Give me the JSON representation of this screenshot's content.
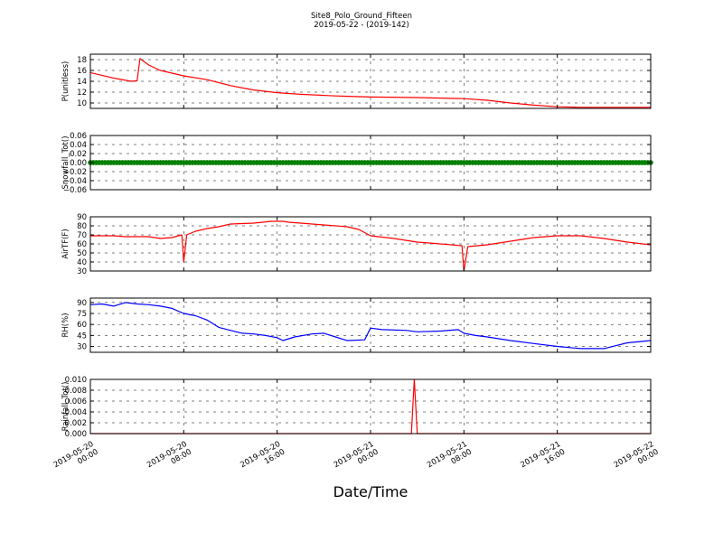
{
  "title": "Site8_Polo_Ground_Fifteen",
  "subtitle": "2019-05-22 - (2019-142)",
  "xlabel": "Date/Time",
  "x_ticks": [
    {
      "line1": "2019-05-20",
      "line2": "00:00"
    },
    {
      "line1": "2019-05-20",
      "line2": "08:00"
    },
    {
      "line1": "2019-05-20",
      "line2": "16:00"
    },
    {
      "line1": "2019-05-21",
      "line2": "00:00"
    },
    {
      "line1": "2019-05-21",
      "line2": "08:00"
    },
    {
      "line1": "2019-05-21",
      "line2": "16:00"
    },
    {
      "line1": "2019-05-22",
      "line2": "00:00"
    }
  ],
  "colors": {
    "red": "#ff0000",
    "green": "#008000",
    "blue": "#0000ff"
  },
  "chart_data": [
    {
      "type": "line",
      "ylabel": "P(unitless)",
      "ylim": [
        9,
        19
      ],
      "yticks": [
        10,
        12,
        14,
        16,
        18
      ],
      "ytick_labels": [
        "10",
        "12",
        "14",
        "16",
        "18"
      ],
      "grid": true,
      "x_range": [
        "2019-05-20 00:00",
        "2019-05-22 00:00"
      ],
      "series": [
        {
          "color": "#ff0000",
          "marker": "none",
          "points": [
            [
              "2019-05-20 00:00",
              15.6
            ],
            [
              "2019-05-20 02:00",
              14.6
            ],
            [
              "2019-05-20 03:30",
              14.0
            ],
            [
              "2019-05-20 04:00",
              14.1
            ],
            [
              "2019-05-20 04:15",
              18.2
            ],
            [
              "2019-05-20 05:00",
              17.0
            ],
            [
              "2019-05-20 06:00",
              16.0
            ],
            [
              "2019-05-20 08:00",
              15.0
            ],
            [
              "2019-05-20 10:00",
              14.3
            ],
            [
              "2019-05-20 12:00",
              13.2
            ],
            [
              "2019-05-20 14:00",
              12.4
            ],
            [
              "2019-05-20 16:00",
              11.9
            ],
            [
              "2019-05-20 18:00",
              11.6
            ],
            [
              "2019-05-20 21:00",
              11.3
            ],
            [
              "2019-05-21 00:00",
              11.1
            ],
            [
              "2019-05-21 04:00",
              11.0
            ],
            [
              "2019-05-21 08:00",
              10.8
            ],
            [
              "2019-05-21 10:00",
              10.5
            ],
            [
              "2019-05-21 12:00",
              10.0
            ],
            [
              "2019-05-21 14:00",
              9.6
            ],
            [
              "2019-05-21 16:00",
              9.3
            ],
            [
              "2019-05-21 18:00",
              9.2
            ],
            [
              "2019-05-21 20:00",
              9.2
            ],
            [
              "2019-05-22 00:00",
              9.2
            ]
          ]
        }
      ]
    },
    {
      "type": "scatter",
      "ylabel": "Snowfall_Tot()",
      "ylim": [
        -0.06,
        0.06
      ],
      "yticks": [
        -0.06,
        -0.04,
        -0.02,
        0.0,
        0.02,
        0.04,
        0.06
      ],
      "ytick_labels": [
        "−0.06",
        "−0.04",
        "−0.02",
        "0.00",
        "0.02",
        "0.04",
        "0.06"
      ],
      "grid": true,
      "x_range": [
        "2019-05-20 00:00",
        "2019-05-22 00:00"
      ],
      "series": [
        {
          "color": "#008000",
          "marker": "circle",
          "constant_value": 0.0,
          "from": "2019-05-20 00:00",
          "to": "2019-05-22 00:00",
          "interval_minutes": 15
        }
      ]
    },
    {
      "type": "line",
      "ylabel": "AirTF(F)",
      "ylim": [
        30,
        90
      ],
      "yticks": [
        30,
        40,
        50,
        60,
        70,
        80,
        90
      ],
      "ytick_labels": [
        "30",
        "40",
        "50",
        "60",
        "70",
        "80",
        "90"
      ],
      "grid": true,
      "x_range": [
        "2019-05-20 00:00",
        "2019-05-22 00:00"
      ],
      "series": [
        {
          "color": "#ff0000",
          "marker": "none",
          "points": [
            [
              "2019-05-20 00:00",
              69
            ],
            [
              "2019-05-20 02:00",
              69
            ],
            [
              "2019-05-20 03:00",
              68
            ],
            [
              "2019-05-20 05:00",
              68
            ],
            [
              "2019-05-20 06:00",
              66
            ],
            [
              "2019-05-20 07:00",
              67
            ],
            [
              "2019-05-20 07:50",
              70
            ],
            [
              "2019-05-20 08:00",
              40
            ],
            [
              "2019-05-20 08:15",
              70
            ],
            [
              "2019-05-20 09:00",
              74
            ],
            [
              "2019-05-20 10:00",
              77
            ],
            [
              "2019-05-20 11:00",
              79
            ],
            [
              "2019-05-20 12:00",
              82
            ],
            [
              "2019-05-20 14:00",
              83
            ],
            [
              "2019-05-20 15:30",
              85
            ],
            [
              "2019-05-20 16:30",
              85
            ],
            [
              "2019-05-20 17:00",
              84
            ],
            [
              "2019-05-20 18:00",
              83
            ],
            [
              "2019-05-20 20:00",
              81
            ],
            [
              "2019-05-20 22:00",
              79
            ],
            [
              "2019-05-20 23:00",
              76
            ],
            [
              "2019-05-21 00:00",
              69
            ],
            [
              "2019-05-21 02:00",
              66
            ],
            [
              "2019-05-21 04:00",
              62
            ],
            [
              "2019-05-21 06:00",
              60
            ],
            [
              "2019-05-21 07:50",
              58
            ],
            [
              "2019-05-21 08:00",
              30
            ],
            [
              "2019-05-21 08:20",
              57
            ],
            [
              "2019-05-21 10:00",
              59
            ],
            [
              "2019-05-21 12:00",
              63
            ],
            [
              "2019-05-21 14:00",
              67
            ],
            [
              "2019-05-21 16:00",
              69
            ],
            [
              "2019-05-21 18:00",
              69
            ],
            [
              "2019-05-21 20:00",
              66
            ],
            [
              "2019-05-21 22:00",
              62
            ],
            [
              "2019-05-22 00:00",
              59
            ]
          ]
        }
      ]
    },
    {
      "type": "line",
      "ylabel": "RH(%)",
      "ylim": [
        22,
        96
      ],
      "yticks": [
        30,
        45,
        60,
        75,
        90
      ],
      "ytick_labels": [
        "30",
        "45",
        "60",
        "75",
        "90"
      ],
      "grid": true,
      "x_range": [
        "2019-05-20 00:00",
        "2019-05-22 00:00"
      ],
      "series": [
        {
          "color": "#0000ff",
          "marker": "none",
          "points": [
            [
              "2019-05-20 00:00",
              87
            ],
            [
              "2019-05-20 01:00",
              88
            ],
            [
              "2019-05-20 02:00",
              85
            ],
            [
              "2019-05-20 03:00",
              90
            ],
            [
              "2019-05-20 04:00",
              88
            ],
            [
              "2019-05-20 05:00",
              87
            ],
            [
              "2019-05-20 06:00",
              85
            ],
            [
              "2019-05-20 07:00",
              82
            ],
            [
              "2019-05-20 08:00",
              75
            ],
            [
              "2019-05-20 09:00",
              72
            ],
            [
              "2019-05-20 10:00",
              66
            ],
            [
              "2019-05-20 11:00",
              56
            ],
            [
              "2019-05-20 12:00",
              52
            ],
            [
              "2019-05-20 13:00",
              48
            ],
            [
              "2019-05-20 14:00",
              47
            ],
            [
              "2019-05-20 15:00",
              45
            ],
            [
              "2019-05-20 16:00",
              42
            ],
            [
              "2019-05-20 16:30",
              38
            ],
            [
              "2019-05-20 17:30",
              43
            ],
            [
              "2019-05-20 19:00",
              47
            ],
            [
              "2019-05-20 20:00",
              48
            ],
            [
              "2019-05-20 21:00",
              43
            ],
            [
              "2019-05-20 22:00",
              38
            ],
            [
              "2019-05-20 23:30",
              39
            ],
            [
              "2019-05-21 00:00",
              55
            ],
            [
              "2019-05-21 01:00",
              53
            ],
            [
              "2019-05-21 03:00",
              52
            ],
            [
              "2019-05-21 04:00",
              50
            ],
            [
              "2019-05-21 06:00",
              51
            ],
            [
              "2019-05-21 07:30",
              53
            ],
            [
              "2019-05-21 08:00",
              48
            ],
            [
              "2019-05-21 09:00",
              45
            ],
            [
              "2019-05-21 10:00",
              43
            ],
            [
              "2019-05-21 12:00",
              38
            ],
            [
              "2019-05-21 14:00",
              34
            ],
            [
              "2019-05-21 16:00",
              30
            ],
            [
              "2019-05-21 18:00",
              27
            ],
            [
              "2019-05-21 20:00",
              27
            ],
            [
              "2019-05-21 22:00",
              35
            ],
            [
              "2019-05-22 00:00",
              38
            ]
          ]
        }
      ]
    },
    {
      "type": "line",
      "ylabel": "Rainfall_Tot()",
      "ylim": [
        0,
        0.01
      ],
      "yticks": [
        0.0,
        0.002,
        0.004,
        0.006,
        0.008,
        0.01
      ],
      "ytick_labels": [
        "0.000",
        "0.002",
        "0.004",
        "0.006",
        "0.008",
        "0.010"
      ],
      "grid": true,
      "x_range": [
        "2019-05-20 00:00",
        "2019-05-22 00:00"
      ],
      "series": [
        {
          "color": "#ff0000",
          "marker": "none",
          "points": [
            [
              "2019-05-20 00:00",
              0
            ],
            [
              "2019-05-21 03:30",
              0
            ],
            [
              "2019-05-21 03:45",
              0.01
            ],
            [
              "2019-05-21 04:00",
              0
            ],
            [
              "2019-05-22 00:00",
              0
            ]
          ]
        }
      ]
    }
  ]
}
